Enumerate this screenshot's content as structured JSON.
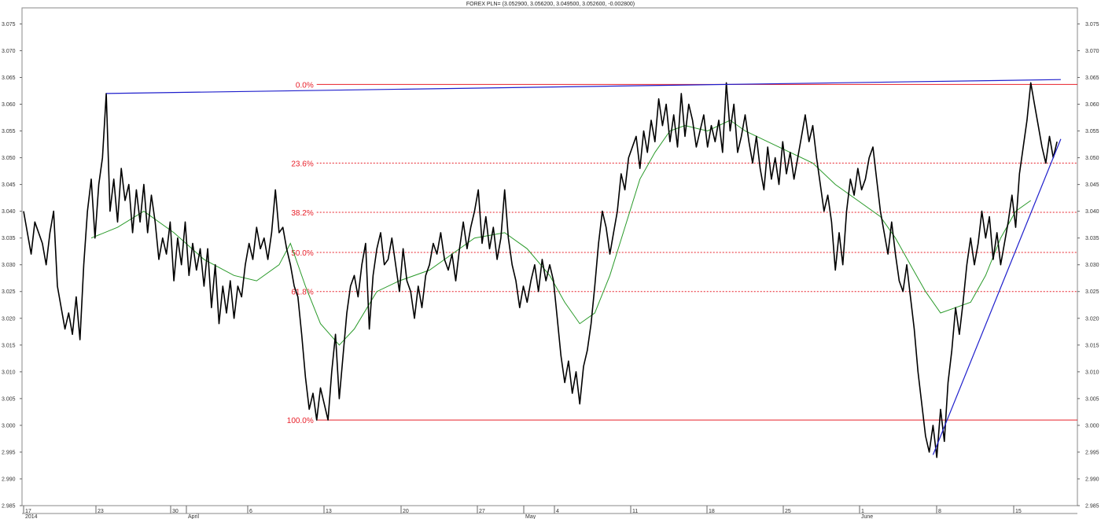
{
  "chart_data": {
    "type": "line",
    "title": "FOREX PLN= (3.052900, 3.056200, 3.049500, 3.052600, -0.002800)",
    "ylim": [
      2.985,
      3.078
    ],
    "y_ticks": [
      "3.075",
      "3.070",
      "3.065",
      "3.060",
      "3.055",
      "3.050",
      "3.045",
      "3.040",
      "3.035",
      "3.030",
      "3.025",
      "3.020",
      "3.015",
      "3.010",
      "3.005",
      "3.000",
      "2.995",
      "2.990",
      "2.985"
    ],
    "x_ticks": [
      {
        "day": "17",
        "month": "2014"
      },
      {
        "day": "23",
        "month": ""
      },
      {
        "day": "30",
        "month": ""
      },
      {
        "day": "",
        "month": "April"
      },
      {
        "day": "6",
        "month": ""
      },
      {
        "day": "13",
        "month": ""
      },
      {
        "day": "20",
        "month": ""
      },
      {
        "day": "27",
        "month": ""
      },
      {
        "day": "",
        "month": "May"
      },
      {
        "day": "4",
        "month": ""
      },
      {
        "day": "11",
        "month": ""
      },
      {
        "day": "18",
        "month": ""
      },
      {
        "day": "25",
        "month": ""
      },
      {
        "day": "1",
        "month": ""
      },
      {
        "day": "",
        "month": "June"
      },
      {
        "day": "8",
        "month": ""
      },
      {
        "day": "15",
        "month": ""
      }
    ],
    "price_series": {
      "color": "#000000",
      "points": [
        [
          0,
          3.04
        ],
        [
          2,
          3.032
        ],
        [
          3,
          3.038
        ],
        [
          5,
          3.034
        ],
        [
          6,
          3.03
        ],
        [
          7,
          3.036
        ],
        [
          8,
          3.04
        ],
        [
          9,
          3.026
        ],
        [
          10,
          3.022
        ],
        [
          11,
          3.018
        ],
        [
          12,
          3.021
        ],
        [
          13,
          3.017
        ],
        [
          14,
          3.024
        ],
        [
          15,
          3.016
        ],
        [
          16,
          3.03
        ],
        [
          17,
          3.04
        ],
        [
          18,
          3.046
        ],
        [
          19,
          3.035
        ],
        [
          20,
          3.045
        ],
        [
          21,
          3.05
        ],
        [
          22,
          3.062
        ],
        [
          23,
          3.04
        ],
        [
          24,
          3.046
        ],
        [
          25,
          3.038
        ],
        [
          26,
          3.048
        ],
        [
          27,
          3.042
        ],
        [
          28,
          3.045
        ],
        [
          29,
          3.036
        ],
        [
          30,
          3.044
        ],
        [
          31,
          3.038
        ],
        [
          32,
          3.045
        ],
        [
          33,
          3.036
        ],
        [
          34,
          3.043
        ],
        [
          35,
          3.038
        ],
        [
          36,
          3.031
        ],
        [
          37,
          3.035
        ],
        [
          38,
          3.032
        ],
        [
          39,
          3.038
        ],
        [
          40,
          3.027
        ],
        [
          41,
          3.035
        ],
        [
          42,
          3.03
        ],
        [
          43,
          3.038
        ],
        [
          44,
          3.028
        ],
        [
          45,
          3.034
        ],
        [
          46,
          3.029
        ],
        [
          47,
          3.033
        ],
        [
          48,
          3.026
        ],
        [
          49,
          3.033
        ],
        [
          50,
          3.022
        ],
        [
          51,
          3.03
        ],
        [
          52,
          3.019
        ],
        [
          53,
          3.026
        ],
        [
          54,
          3.021
        ],
        [
          55,
          3.027
        ],
        [
          56,
          3.02
        ],
        [
          57,
          3.026
        ],
        [
          58,
          3.024
        ],
        [
          59,
          3.03
        ],
        [
          60,
          3.034
        ],
        [
          61,
          3.031
        ],
        [
          62,
          3.037
        ],
        [
          63,
          3.033
        ],
        [
          64,
          3.035
        ],
        [
          65,
          3.031
        ],
        [
          66,
          3.036
        ],
        [
          67,
          3.044
        ],
        [
          68,
          3.036
        ],
        [
          69,
          3.037
        ],
        [
          70,
          3.033
        ],
        [
          71,
          3.03
        ],
        [
          72,
          3.026
        ],
        [
          73,
          3.024
        ],
        [
          74,
          3.017
        ],
        [
          75,
          3.009
        ],
        [
          76,
          3.003
        ],
        [
          77,
          3.006
        ],
        [
          78,
          3.001
        ],
        [
          79,
          3.007
        ],
        [
          80,
          3.004
        ],
        [
          81,
          3.001
        ],
        [
          82,
          3.01
        ],
        [
          83,
          3.017
        ],
        [
          84,
          3.005
        ],
        [
          85,
          3.013
        ],
        [
          86,
          3.021
        ],
        [
          87,
          3.026
        ],
        [
          88,
          3.028
        ],
        [
          89,
          3.024
        ],
        [
          90,
          3.03
        ],
        [
          91,
          3.034
        ],
        [
          92,
          3.018
        ],
        [
          93,
          3.028
        ],
        [
          94,
          3.033
        ],
        [
          95,
          3.036
        ],
        [
          96,
          3.03
        ],
        [
          97,
          3.031
        ],
        [
          98,
          3.035
        ],
        [
          99,
          3.03
        ],
        [
          100,
          3.025
        ],
        [
          101,
          3.033
        ],
        [
          102,
          3.027
        ],
        [
          103,
          3.025
        ],
        [
          104,
          3.02
        ],
        [
          105,
          3.026
        ],
        [
          106,
          3.022
        ],
        [
          107,
          3.028
        ],
        [
          108,
          3.03
        ],
        [
          109,
          3.034
        ],
        [
          110,
          3.032
        ],
        [
          111,
          3.036
        ],
        [
          112,
          3.031
        ],
        [
          113,
          3.029
        ],
        [
          114,
          3.032
        ],
        [
          115,
          3.027
        ],
        [
          116,
          3.033
        ],
        [
          117,
          3.038
        ],
        [
          118,
          3.033
        ],
        [
          119,
          3.037
        ],
        [
          120,
          3.04
        ],
        [
          121,
          3.044
        ],
        [
          122,
          3.034
        ],
        [
          123,
          3.039
        ],
        [
          124,
          3.033
        ],
        [
          125,
          3.037
        ],
        [
          126,
          3.031
        ],
        [
          127,
          3.035
        ],
        [
          128,
          3.044
        ],
        [
          129,
          3.035
        ],
        [
          130,
          3.03
        ],
        [
          131,
          3.027
        ],
        [
          132,
          3.022
        ],
        [
          133,
          3.026
        ],
        [
          134,
          3.023
        ],
        [
          135,
          3.027
        ],
        [
          136,
          3.03
        ],
        [
          137,
          3.025
        ],
        [
          138,
          3.031
        ],
        [
          139,
          3.027
        ],
        [
          140,
          3.03
        ],
        [
          141,
          3.027
        ],
        [
          142,
          3.02
        ],
        [
          143,
          3.013
        ],
        [
          144,
          3.008
        ],
        [
          145,
          3.012
        ],
        [
          146,
          3.006
        ],
        [
          147,
          3.01
        ],
        [
          148,
          3.004
        ],
        [
          149,
          3.011
        ],
        [
          150,
          3.014
        ],
        [
          151,
          3.019
        ],
        [
          152,
          3.026
        ],
        [
          153,
          3.034
        ],
        [
          154,
          3.04
        ],
        [
          155,
          3.037
        ],
        [
          156,
          3.032
        ],
        [
          157,
          3.036
        ],
        [
          158,
          3.04
        ],
        [
          159,
          3.047
        ],
        [
          160,
          3.044
        ],
        [
          161,
          3.05
        ],
        [
          162,
          3.052
        ],
        [
          163,
          3.054
        ],
        [
          164,
          3.048
        ],
        [
          165,
          3.055
        ],
        [
          166,
          3.051
        ],
        [
          167,
          3.057
        ],
        [
          168,
          3.053
        ],
        [
          169,
          3.061
        ],
        [
          170,
          3.056
        ],
        [
          171,
          3.06
        ],
        [
          172,
          3.053
        ],
        [
          173,
          3.058
        ],
        [
          174,
          3.052
        ],
        [
          175,
          3.062
        ],
        [
          176,
          3.054
        ],
        [
          177,
          3.06
        ],
        [
          178,
          3.057
        ],
        [
          179,
          3.052
        ],
        [
          180,
          3.055
        ],
        [
          181,
          3.058
        ],
        [
          182,
          3.052
        ],
        [
          183,
          3.056
        ],
        [
          184,
          3.053
        ],
        [
          185,
          3.057
        ],
        [
          186,
          3.051
        ],
        [
          187,
          3.064
        ],
        [
          188,
          3.055
        ],
        [
          189,
          3.06
        ],
        [
          190,
          3.051
        ],
        [
          191,
          3.054
        ],
        [
          192,
          3.058
        ],
        [
          193,
          3.053
        ],
        [
          194,
          3.049
        ],
        [
          195,
          3.054
        ],
        [
          196,
          3.048
        ],
        [
          197,
          3.044
        ],
        [
          198,
          3.052
        ],
        [
          199,
          3.046
        ],
        [
          200,
          3.05
        ],
        [
          201,
          3.045
        ],
        [
          202,
          3.053
        ],
        [
          203,
          3.047
        ],
        [
          204,
          3.051
        ],
        [
          205,
          3.046
        ],
        [
          206,
          3.05
        ],
        [
          207,
          3.054
        ],
        [
          208,
          3.058
        ],
        [
          209,
          3.053
        ],
        [
          210,
          3.056
        ],
        [
          211,
          3.05
        ],
        [
          212,
          3.045
        ],
        [
          213,
          3.04
        ],
        [
          214,
          3.043
        ],
        [
          215,
          3.038
        ],
        [
          216,
          3.029
        ],
        [
          217,
          3.036
        ],
        [
          218,
          3.03
        ],
        [
          219,
          3.04
        ],
        [
          220,
          3.046
        ],
        [
          221,
          3.043
        ],
        [
          222,
          3.048
        ],
        [
          223,
          3.044
        ],
        [
          224,
          3.046
        ],
        [
          225,
          3.05
        ],
        [
          226,
          3.052
        ],
        [
          227,
          3.046
        ],
        [
          228,
          3.04
        ],
        [
          229,
          3.036
        ],
        [
          230,
          3.032
        ],
        [
          231,
          3.038
        ],
        [
          232,
          3.032
        ],
        [
          233,
          3.027
        ],
        [
          234,
          3.025
        ],
        [
          235,
          3.03
        ],
        [
          236,
          3.024
        ],
        [
          237,
          3.018
        ],
        [
          238,
          3.01
        ],
        [
          239,
          3.004
        ],
        [
          240,
          2.998
        ],
        [
          241,
          2.995
        ],
        [
          242,
          3.0
        ],
        [
          243,
          2.994
        ],
        [
          244,
          3.003
        ],
        [
          245,
          2.997
        ],
        [
          246,
          3.008
        ],
        [
          247,
          3.014
        ],
        [
          248,
          3.022
        ],
        [
          249,
          3.017
        ],
        [
          250,
          3.023
        ],
        [
          251,
          3.03
        ],
        [
          252,
          3.035
        ],
        [
          253,
          3.03
        ],
        [
          254,
          3.034
        ],
        [
          255,
          3.04
        ],
        [
          256,
          3.035
        ],
        [
          257,
          3.039
        ],
        [
          258,
          3.031
        ],
        [
          259,
          3.036
        ],
        [
          260,
          3.03
        ],
        [
          261,
          3.034
        ],
        [
          262,
          3.038
        ],
        [
          263,
          3.043
        ],
        [
          264,
          3.037
        ],
        [
          265,
          3.047
        ],
        [
          266,
          3.052
        ],
        [
          267,
          3.057
        ],
        [
          268,
          3.064
        ],
        [
          269,
          3.06
        ],
        [
          270,
          3.056
        ],
        [
          271,
          3.052
        ],
        [
          272,
          3.049
        ],
        [
          273,
          3.054
        ],
        [
          274,
          3.05
        ],
        [
          275,
          3.053
        ]
      ]
    },
    "moving_average_series": {
      "color": "#2a9a2a",
      "points": [
        [
          18,
          3.035
        ],
        [
          25,
          3.037
        ],
        [
          32,
          3.04
        ],
        [
          40,
          3.036
        ],
        [
          48,
          3.031
        ],
        [
          56,
          3.028
        ],
        [
          62,
          3.027
        ],
        [
          68,
          3.03
        ],
        [
          71,
          3.034
        ],
        [
          75,
          3.026
        ],
        [
          79,
          3.019
        ],
        [
          84,
          3.015
        ],
        [
          88,
          3.018
        ],
        [
          94,
          3.025
        ],
        [
          100,
          3.027
        ],
        [
          108,
          3.029
        ],
        [
          114,
          3.032
        ],
        [
          120,
          3.035
        ],
        [
          128,
          3.036
        ],
        [
          134,
          3.033
        ],
        [
          140,
          3.028
        ],
        [
          144,
          3.023
        ],
        [
          148,
          3.019
        ],
        [
          152,
          3.021
        ],
        [
          156,
          3.028
        ],
        [
          160,
          3.037
        ],
        [
          164,
          3.046
        ],
        [
          168,
          3.051
        ],
        [
          172,
          3.055
        ],
        [
          176,
          3.056
        ],
        [
          182,
          3.055
        ],
        [
          188,
          3.057
        ],
        [
          192,
          3.055
        ],
        [
          198,
          3.053
        ],
        [
          204,
          3.051
        ],
        [
          210,
          3.049
        ],
        [
          216,
          3.045
        ],
        [
          222,
          3.042
        ],
        [
          228,
          3.039
        ],
        [
          232,
          3.035
        ],
        [
          236,
          3.03
        ],
        [
          240,
          3.025
        ],
        [
          244,
          3.021
        ],
        [
          248,
          3.022
        ],
        [
          252,
          3.023
        ],
        [
          256,
          3.028
        ],
        [
          260,
          3.035
        ],
        [
          264,
          3.04
        ],
        [
          268,
          3.042
        ]
      ]
    },
    "trendlines": [
      {
        "color": "#1f1fcc",
        "from": [
          22,
          3.062
        ],
        "to": [
          276,
          3.0646
        ]
      },
      {
        "color": "#1f1fcc",
        "from": [
          242,
          2.9945
        ],
        "to": [
          276,
          3.0535
        ]
      }
    ],
    "fibonacci_levels": [
      {
        "label": "0.0%",
        "value": 3.0637,
        "start_x": 78
      },
      {
        "label": "23.6%",
        "value": 3.049,
        "start_x": 78
      },
      {
        "label": "38.2%",
        "value": 3.0398,
        "start_x": 78
      },
      {
        "label": "50.0%",
        "value": 3.0323,
        "start_x": 78
      },
      {
        "label": "61.8%",
        "value": 3.025,
        "start_x": 78
      },
      {
        "label": "100.0%",
        "value": 3.001,
        "start_x": 78
      }
    ],
    "fib_color": "#e8202a",
    "grid": false
  }
}
